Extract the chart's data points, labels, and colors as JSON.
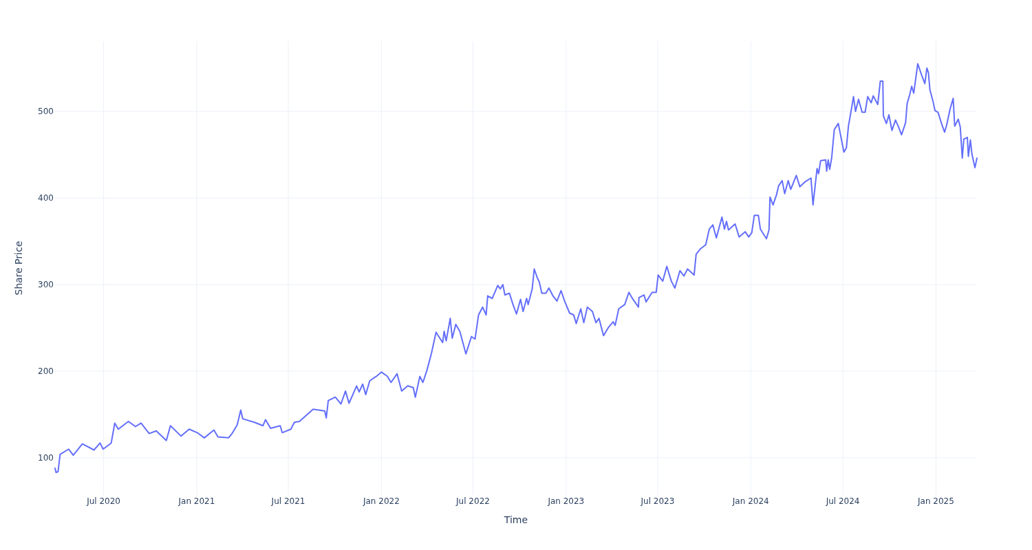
{
  "chart_data": {
    "type": "line",
    "xlabel": "Time",
    "ylabel": "Share Price",
    "grid": true,
    "xlim": [
      "2020-03-27",
      "2025-03-23"
    ],
    "ylim": [
      57,
      581
    ],
    "yticks": [
      100,
      200,
      300,
      400,
      500
    ],
    "xticks": [
      {
        "value": "2020-07-01",
        "label": "Jul 2020"
      },
      {
        "value": "2021-01-01",
        "label": "Jan 2021"
      },
      {
        "value": "2021-07-01",
        "label": "Jul 2021"
      },
      {
        "value": "2022-01-01",
        "label": "Jan 2022"
      },
      {
        "value": "2022-07-01",
        "label": "Jul 2022"
      },
      {
        "value": "2023-01-01",
        "label": "Jan 2023"
      },
      {
        "value": "2023-07-01",
        "label": "Jul 2023"
      },
      {
        "value": "2024-01-01",
        "label": "Jan 2024"
      },
      {
        "value": "2024-07-01",
        "label": "Jul 2024"
      },
      {
        "value": "2025-01-01",
        "label": "Jan 2025"
      }
    ],
    "series": [
      {
        "color": "#636efa",
        "x": [
          "2020-03-27",
          "2020-03-29",
          "2020-04-02",
          "2020-04-06",
          "2020-04-23",
          "2020-05-02",
          "2020-05-20",
          "2020-06-12",
          "2020-06-24",
          "2020-06-30",
          "2020-07-16",
          "2020-07-23",
          "2020-07-30",
          "2020-08-19",
          "2020-09-02",
          "2020-09-13",
          "2020-09-29",
          "2020-10-13",
          "2020-11-02",
          "2020-11-10",
          "2020-12-01",
          "2020-12-17",
          "2021-01-02",
          "2021-01-16",
          "2021-02-04",
          "2021-02-12",
          "2021-03-05",
          "2021-03-13",
          "2021-03-22",
          "2021-03-29",
          "2021-04-02",
          "2021-04-25",
          "2021-05-12",
          "2021-05-17",
          "2021-05-27",
          "2021-06-15",
          "2021-06-19",
          "2021-07-06",
          "2021-07-13",
          "2021-07-23",
          "2021-08-19",
          "2021-09-11",
          "2021-09-14",
          "2021-09-18",
          "2021-10-02",
          "2021-10-13",
          "2021-10-22",
          "2021-10-29",
          "2021-11-13",
          "2021-11-18",
          "2021-11-25",
          "2021-12-01",
          "2021-12-09",
          "2021-12-22",
          "2022-01-01",
          "2022-01-13",
          "2022-01-20",
          "2022-02-01",
          "2022-02-10",
          "2022-02-22",
          "2022-03-05",
          "2022-03-09",
          "2022-03-18",
          "2022-03-24",
          "2022-04-01",
          "2022-04-10",
          "2022-04-19",
          "2022-05-02",
          "2022-05-05",
          "2022-05-09",
          "2022-05-17",
          "2022-05-21",
          "2022-05-28",
          "2022-06-05",
          "2022-06-17",
          "2022-06-28",
          "2022-07-05",
          "2022-07-12",
          "2022-07-20",
          "2022-07-27",
          "2022-07-30",
          "2022-08-08",
          "2022-08-19",
          "2022-08-24",
          "2022-08-29",
          "2022-09-02",
          "2022-09-11",
          "2022-09-18",
          "2022-09-25",
          "2022-10-03",
          "2022-10-08",
          "2022-10-15",
          "2022-10-18",
          "2022-10-26",
          "2022-10-30",
          "2022-11-05",
          "2022-11-09",
          "2022-11-14",
          "2022-11-22",
          "2022-11-28",
          "2022-12-06",
          "2022-12-14",
          "2022-12-22",
          "2022-12-29",
          "2023-01-08",
          "2023-01-16",
          "2023-01-21",
          "2023-01-30",
          "2023-02-05",
          "2023-02-12",
          "2023-02-22",
          "2023-03-01",
          "2023-03-07",
          "2023-03-16",
          "2023-03-25",
          "2023-04-04",
          "2023-04-08",
          "2023-04-15",
          "2023-04-27",
          "2023-05-05",
          "2023-05-12",
          "2023-05-24",
          "2023-05-25",
          "2023-06-04",
          "2023-06-08",
          "2023-06-20",
          "2023-06-28",
          "2023-07-02",
          "2023-07-11",
          "2023-07-19",
          "2023-07-28",
          "2023-08-04",
          "2023-08-14",
          "2023-08-22",
          "2023-08-29",
          "2023-09-11",
          "2023-09-15",
          "2023-09-23",
          "2023-10-04",
          "2023-10-11",
          "2023-10-18",
          "2023-10-25",
          "2023-11-05",
          "2023-11-10",
          "2023-11-14",
          "2023-11-18",
          "2023-12-01",
          "2023-12-09",
          "2023-12-21",
          "2023-12-28",
          "2024-01-03",
          "2024-01-08",
          "2024-01-16",
          "2024-01-20",
          "2024-02-01",
          "2024-02-06",
          "2024-02-08",
          "2024-02-14",
          "2024-02-21",
          "2024-02-25",
          "2024-03-03",
          "2024-03-08",
          "2024-03-15",
          "2024-03-20",
          "2024-03-31",
          "2024-04-07",
          "2024-04-18",
          "2024-04-29",
          "2024-05-03",
          "2024-05-07",
          "2024-05-11",
          "2024-05-14",
          "2024-05-18",
          "2024-05-28",
          "2024-05-30",
          "2024-06-02",
          "2024-06-05",
          "2024-06-09",
          "2024-06-14",
          "2024-06-22",
          "2024-07-03",
          "2024-07-08",
          "2024-07-12",
          "2024-07-18",
          "2024-07-22",
          "2024-07-26",
          "2024-08-01",
          "2024-08-08",
          "2024-08-14",
          "2024-08-19",
          "2024-08-26",
          "2024-08-30",
          "2024-09-08",
          "2024-09-13",
          "2024-09-18",
          "2024-09-19",
          "2024-09-25",
          "2024-09-30",
          "2024-10-06",
          "2024-10-13",
          "2024-10-19",
          "2024-10-25",
          "2024-11-02",
          "2024-11-05",
          "2024-11-10",
          "2024-11-14",
          "2024-11-18",
          "2024-11-26",
          "2024-12-03",
          "2024-12-10",
          "2024-12-14",
          "2024-12-17",
          "2024-12-20",
          "2024-12-26",
          "2024-12-30",
          "2025-01-05",
          "2025-01-12",
          "2025-01-18",
          "2025-01-22",
          "2025-01-29",
          "2025-02-04",
          "2025-02-07",
          "2025-02-14",
          "2025-02-18",
          "2025-02-22",
          "2025-02-25",
          "2025-03-04",
          "2025-03-06",
          "2025-03-10",
          "2025-03-13",
          "2025-03-19",
          "2025-03-23"
        ],
        "values": [
          88,
          83,
          84,
          104,
          110,
          103,
          116,
          109,
          117,
          110,
          117,
          140,
          133,
          142,
          136,
          140,
          128,
          131,
          120,
          137,
          125,
          133,
          129,
          123,
          132,
          124,
          123,
          129,
          138,
          155,
          145,
          141,
          137,
          144,
          134,
          137,
          129,
          133,
          141,
          142,
          156,
          154,
          146,
          166,
          170,
          162,
          177,
          163,
          183,
          176,
          185,
          173,
          189,
          194,
          199,
          194,
          187,
          197,
          177,
          183,
          181,
          170,
          194,
          187,
          201,
          221,
          245,
          233,
          246,
          235,
          261,
          238,
          254,
          246,
          220,
          240,
          237,
          265,
          274,
          265,
          287,
          284,
          299,
          295,
          300,
          288,
          290,
          277,
          266,
          283,
          269,
          284,
          277,
          295,
          318,
          308,
          303,
          290,
          290,
          296,
          287,
          281,
          293,
          281,
          267,
          265,
          255,
          272,
          256,
          274,
          269,
          256,
          261,
          241,
          250,
          257,
          253,
          272,
          277,
          291,
          284,
          274,
          285,
          288,
          280,
          291,
          291,
          311,
          304,
          321,
          304,
          296,
          316,
          310,
          318,
          311,
          335,
          341,
          346,
          364,
          369,
          354,
          378,
          364,
          373,
          363,
          370,
          355,
          361,
          355,
          360,
          380,
          380,
          364,
          353,
          363,
          401,
          392,
          404,
          414,
          420,
          405,
          420,
          410,
          426,
          413,
          419,
          423,
          392,
          413,
          434,
          428,
          443,
          444,
          431,
          444,
          433,
          447,
          479,
          486,
          453,
          458,
          483,
          503,
          517,
          500,
          514,
          499,
          499,
          517,
          510,
          518,
          508,
          535,
          535,
          495,
          486,
          496,
          478,
          490,
          482,
          473,
          487,
          509,
          519,
          529,
          521,
          555,
          543,
          532,
          550,
          545,
          525,
          512,
          501,
          499,
          486,
          476,
          484,
          503,
          515,
          483,
          491,
          482,
          446,
          468,
          470,
          448,
          467,
          451,
          435,
          446
        ]
      }
    ]
  }
}
